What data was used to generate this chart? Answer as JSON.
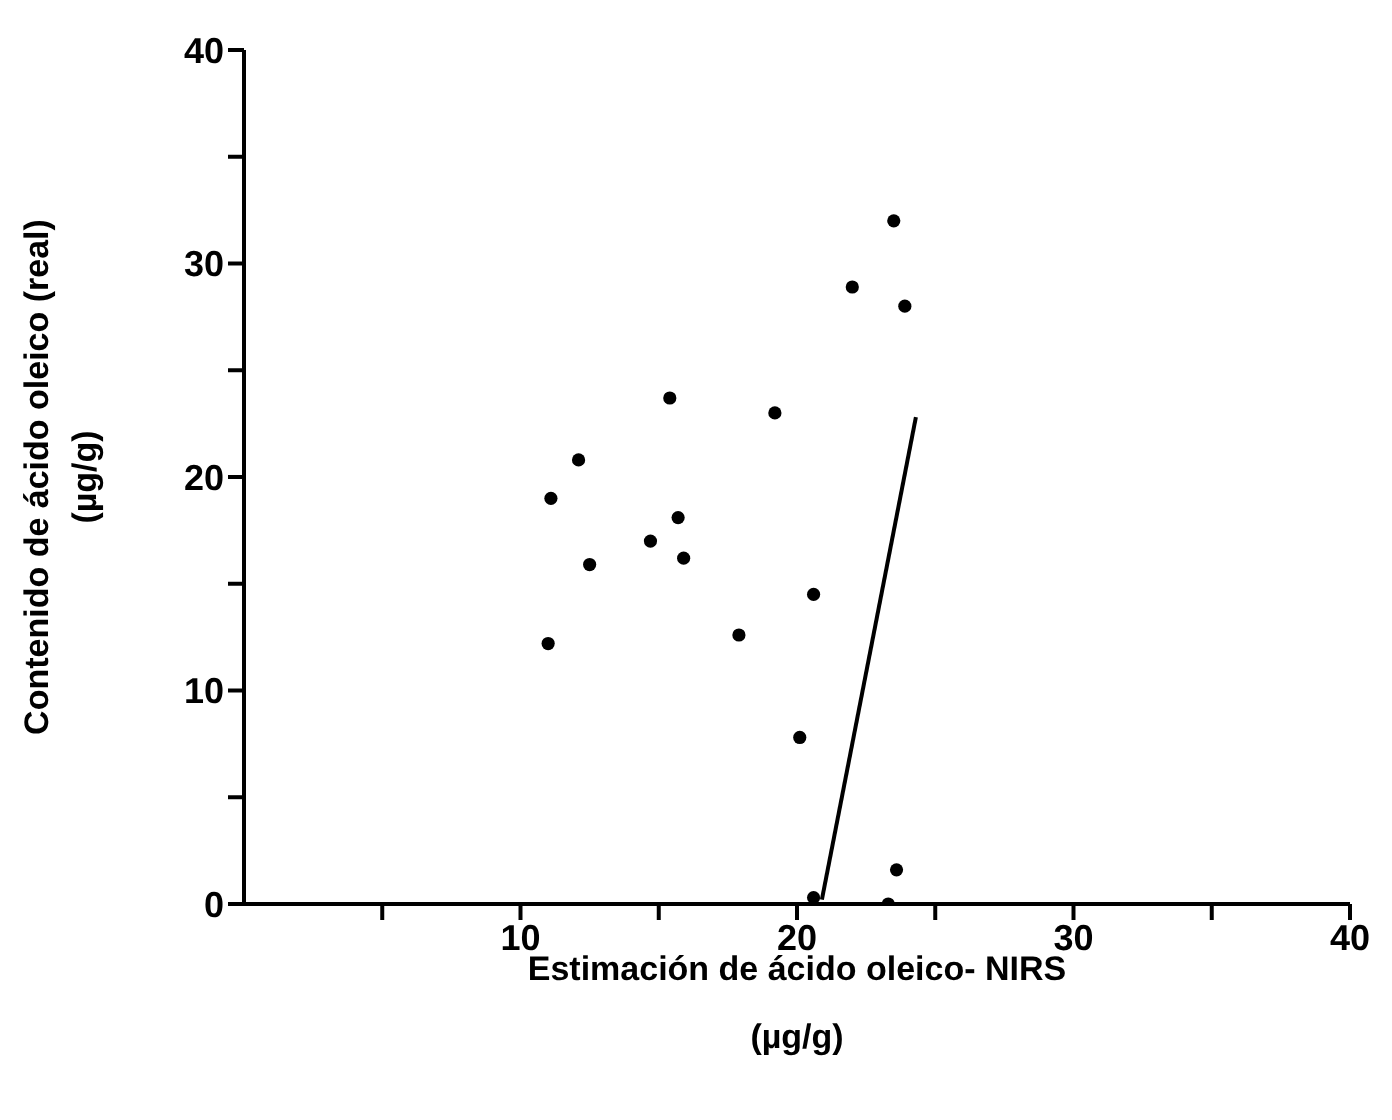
{
  "chart_data": {
    "type": "scatter",
    "xlabel": "Estimación de ácido oleico- NIRS\n(µg/g)",
    "ylabel": "Contenido de ácido oleico (real)\n(µg/g)",
    "xlim": [
      0,
      40
    ],
    "ylim": [
      0,
      40
    ],
    "xticks": [
      {
        "value": 5,
        "label": null
      },
      10,
      {
        "value": 15,
        "label": null
      },
      20,
      {
        "value": 25,
        "label": null
      },
      30,
      {
        "value": 35,
        "label": null
      },
      40
    ],
    "yticks": [
      0,
      {
        "value": 5,
        "label": null
      },
      10,
      {
        "value": 15,
        "label": null
      },
      20,
      {
        "value": 25,
        "label": null
      },
      30,
      {
        "value": 35,
        "label": null
      },
      40
    ],
    "series": [
      {
        "color": "#000000",
        "marker": "circle",
        "x": [
          23.5,
          22.0,
          23.9,
          15.4,
          19.2,
          12.1,
          11.1,
          15.7,
          14.7,
          15.9,
          12.5,
          20.6,
          11.0,
          17.9,
          20.1,
          23.6,
          23.3,
          20.6
        ],
        "values": [
          32.0,
          28.9,
          28.0,
          23.7,
          23.0,
          20.8,
          19.0,
          18.1,
          17.0,
          16.2,
          15.9,
          14.5,
          12.2,
          12.6,
          7.8,
          1.6,
          0,
          0.3
        ]
      },
      {
        "type": "line",
        "color": "#000000",
        "marker": "none",
        "line_style": "solid",
        "x": [
          20.9,
          24.3
        ],
        "values": [
          0.2,
          22.8
        ]
      }
    ]
  }
}
